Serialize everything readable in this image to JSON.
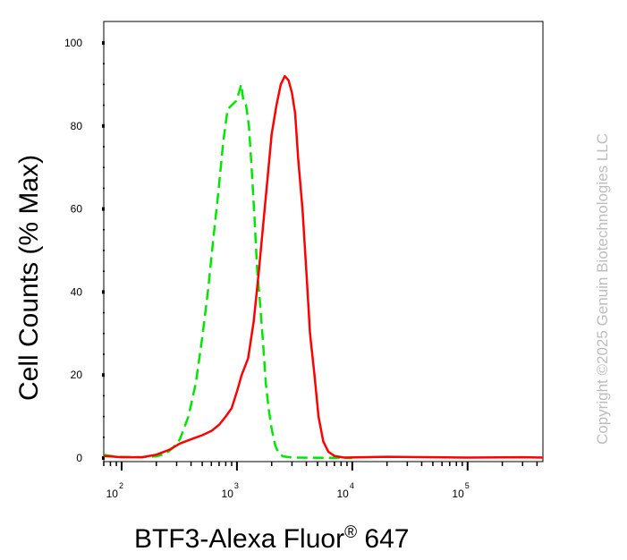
{
  "chart_data": {
    "type": "line",
    "title": "",
    "xlabel": "BTF3-Alexa Fluor",
    "xlabel_mark": "®",
    "xlabel_suffix": " 647",
    "ylabel": "Cell Counts (% Max)",
    "xscale": "log",
    "xlim": [
      70,
      450000
    ],
    "ylim": [
      0,
      100
    ],
    "x_ticks": [
      {
        "base": "10",
        "exp": "2",
        "value": 100
      },
      {
        "base": "10",
        "exp": "3",
        "value": 1000
      },
      {
        "base": "10",
        "exp": "4",
        "value": 10000
      },
      {
        "base": "10",
        "exp": "5",
        "value": 100000
      }
    ],
    "y_ticks": [
      "0",
      "20",
      "40",
      "60",
      "80",
      "100"
    ],
    "grid": false,
    "legend": "none",
    "series": [
      {
        "color": "#00e600",
        "style": "dashed",
        "points": [
          [
            70,
            0.8
          ],
          [
            90,
            0.3
          ],
          [
            150,
            0.2
          ],
          [
            200,
            0.4
          ],
          [
            240,
            1.0
          ],
          [
            280,
            2.5
          ],
          [
            320,
            4.5
          ],
          [
            380,
            10
          ],
          [
            440,
            18
          ],
          [
            500,
            29
          ],
          [
            560,
            40
          ],
          [
            620,
            52
          ],
          [
            690,
            64
          ],
          [
            760,
            76
          ],
          [
            830,
            84
          ],
          [
            900,
            85
          ],
          [
            980,
            86
          ],
          [
            1040,
            88
          ],
          [
            1090,
            90
          ],
          [
            1140,
            86
          ],
          [
            1200,
            85
          ],
          [
            1270,
            80
          ],
          [
            1340,
            70
          ],
          [
            1420,
            58
          ],
          [
            1500,
            45
          ],
          [
            1580,
            38
          ],
          [
            1680,
            28
          ],
          [
            1780,
            18
          ],
          [
            1880,
            12
          ],
          [
            2000,
            7
          ],
          [
            2150,
            3
          ],
          [
            2300,
            1.2
          ],
          [
            2500,
            0.4
          ],
          [
            3000,
            0.1
          ],
          [
            10000,
            0
          ]
        ]
      },
      {
        "color": "#ff0000",
        "style": "solid",
        "points": [
          [
            70,
            0.5
          ],
          [
            100,
            0.2
          ],
          [
            150,
            0.2
          ],
          [
            200,
            0.8
          ],
          [
            260,
            2.0
          ],
          [
            320,
            3.5
          ],
          [
            400,
            4.5
          ],
          [
            500,
            5.5
          ],
          [
            600,
            6.5
          ],
          [
            700,
            8
          ],
          [
            800,
            10
          ],
          [
            900,
            12
          ],
          [
            1000,
            16
          ],
          [
            1100,
            20
          ],
          [
            1250,
            24
          ],
          [
            1400,
            33
          ],
          [
            1550,
            45
          ],
          [
            1700,
            57
          ],
          [
            1850,
            68
          ],
          [
            2000,
            78
          ],
          [
            2200,
            85
          ],
          [
            2400,
            90
          ],
          [
            2600,
            92
          ],
          [
            2800,
            91
          ],
          [
            3000,
            88
          ],
          [
            3200,
            83
          ],
          [
            3400,
            72
          ],
          [
            3700,
            60
          ],
          [
            4000,
            45
          ],
          [
            4300,
            30
          ],
          [
            4700,
            20
          ],
          [
            5100,
            10
          ],
          [
            5600,
            4
          ],
          [
            6200,
            1.5
          ],
          [
            7000,
            0.5
          ],
          [
            8500,
            0.1
          ],
          [
            20000,
            0.3
          ],
          [
            50000,
            0.2
          ],
          [
            100000,
            0.1
          ],
          [
            300000,
            0.2
          ],
          [
            450000,
            0.1
          ]
        ]
      }
    ]
  },
  "watermark": "Copyright ©2025 Genuin Biotechnologies LLC"
}
